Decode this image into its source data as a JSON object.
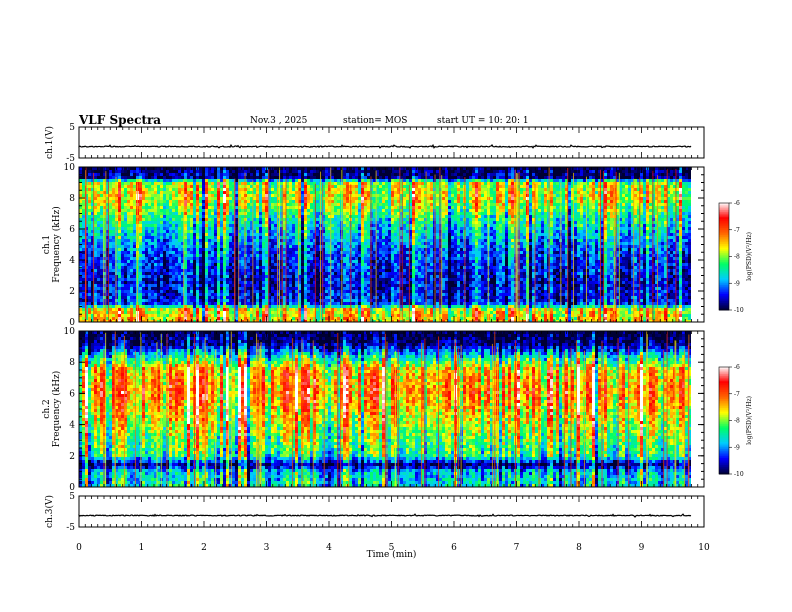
{
  "header": {
    "title": "VLF Spectra",
    "date": "Nov.3 , 2025",
    "station": "station= MOS",
    "start": "start UT = 10: 20: 1"
  },
  "colors": {
    "spectrogram_scale": [
      "#000033",
      "#0000ff",
      "#00ccff",
      "#00ff66",
      "#ffff00",
      "#ff6600",
      "#ff0000",
      "#ffffff"
    ]
  },
  "chart_data": [
    {
      "type": "line",
      "name": "waveform ch.1",
      "ylabel": "ch.1(V)",
      "ylim": [
        -5,
        5
      ],
      "yticks": [
        "5",
        "-5"
      ],
      "level": -1.3
    },
    {
      "type": "heatmap",
      "name": "spectrogram ch.1",
      "ylabel": "ch.1\nFrequency (kHz)",
      "ylim": [
        0,
        10
      ],
      "yticks": [
        "0",
        "2",
        "4",
        "6",
        "8",
        "10"
      ],
      "xlim": [
        0,
        10
      ],
      "data_end_min": 9.8,
      "colorbar": {
        "label": "log(PSD)(V²/Hz)",
        "range": [
          -10,
          -6
        ],
        "ticks": [
          "-6",
          "-7",
          "-8",
          "-9",
          "-10"
        ]
      },
      "profile": [
        {
          "freq": 0.0,
          "level": 0.6
        },
        {
          "freq": 0.8,
          "level": 0.55
        },
        {
          "freq": 1.2,
          "level": 0.15
        },
        {
          "freq": 2.5,
          "level": 0.1
        },
        {
          "freq": 4.5,
          "level": 0.18
        },
        {
          "freq": 6.5,
          "level": 0.35
        },
        {
          "freq": 8.0,
          "level": 0.55
        },
        {
          "freq": 9.0,
          "level": 0.5
        },
        {
          "freq": 9.3,
          "level": 0.05
        },
        {
          "freq": 10.0,
          "level": 0.0
        }
      ]
    },
    {
      "type": "heatmap",
      "name": "spectrogram ch.2",
      "ylabel": "ch.2\nFrequency (kHz)",
      "ylim": [
        0,
        10
      ],
      "yticks": [
        "0",
        "2",
        "4",
        "6",
        "8",
        "10"
      ],
      "xlim": [
        0,
        10
      ],
      "data_end_min": 9.8,
      "colorbar": {
        "label": "log(PSD)(V²/Hz)",
        "range": [
          -10,
          -6
        ],
        "ticks": [
          "-6",
          "-7",
          "-8",
          "-9",
          "-10"
        ]
      },
      "profile": [
        {
          "freq": 0.0,
          "level": 0.35
        },
        {
          "freq": 1.0,
          "level": 0.3
        },
        {
          "freq": 1.4,
          "level": 0.05
        },
        {
          "freq": 2.0,
          "level": 0.4
        },
        {
          "freq": 4.0,
          "level": 0.55
        },
        {
          "freq": 6.0,
          "level": 0.72
        },
        {
          "freq": 7.5,
          "level": 0.65
        },
        {
          "freq": 8.5,
          "level": 0.3
        },
        {
          "freq": 9.2,
          "level": 0.05
        },
        {
          "freq": 10.0,
          "level": 0.0
        }
      ]
    },
    {
      "type": "line",
      "name": "waveform ch.3",
      "ylabel": "ch.3(V)",
      "ylim": [
        -5,
        5
      ],
      "yticks": [
        "5",
        "-5"
      ],
      "level": -1.3,
      "xlabel": "Time (min)",
      "xlim": [
        0,
        10
      ],
      "xticks": [
        "0",
        "1",
        "2",
        "3",
        "4",
        "5",
        "6",
        "7",
        "8",
        "9",
        "10"
      ]
    }
  ]
}
